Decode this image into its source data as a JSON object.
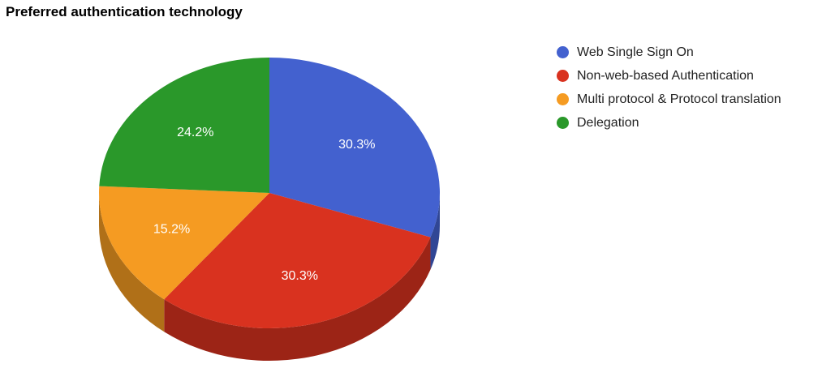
{
  "chart_data": {
    "type": "pie",
    "title": "Preferred authentication technology",
    "legend_position": "right",
    "three_d": true,
    "slices": [
      {
        "name": "Web Single Sign On",
        "value": 30.3,
        "label": "30.3%",
        "color": "#4361cf"
      },
      {
        "name": "Non-web-based Authentication",
        "value": 30.3,
        "label": "30.3%",
        "color": "#d9321f"
      },
      {
        "name": "Multi protocol & Protocol translation",
        "value": 15.2,
        "label": "15.2%",
        "color": "#f59b22"
      },
      {
        "name": "Delegation",
        "value": 24.2,
        "label": "24.2%",
        "color": "#2a982a"
      }
    ]
  }
}
